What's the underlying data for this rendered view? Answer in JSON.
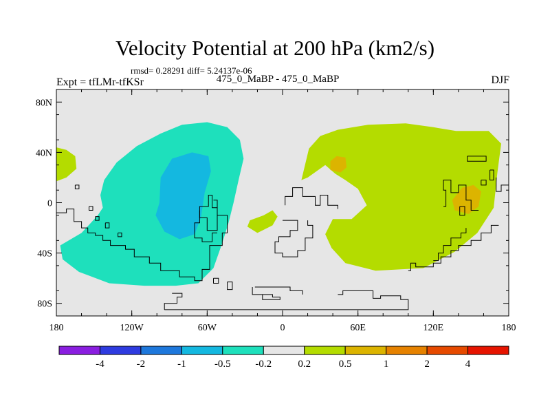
{
  "chart_data": {
    "type": "contour-map",
    "title": "Velocity Potential at 200 hPa (km2/s)",
    "stats_text": "rmsd= 0.28291 diff= 5.24137e-06",
    "left_label": "Expt = tfLMr-tfKSr",
    "center_label": "475_0_MaBP - 475_0_MaBP",
    "right_label": "DJF",
    "xlim": [
      -180,
      180
    ],
    "ylim": [
      -90,
      90
    ],
    "x_ticks": [
      {
        "value": -180,
        "label": "180"
      },
      {
        "value": -120,
        "label": "120W"
      },
      {
        "value": -60,
        "label": "60W"
      },
      {
        "value": 0,
        "label": "0"
      },
      {
        "value": 60,
        "label": "60E"
      },
      {
        "value": 120,
        "label": "120E"
      },
      {
        "value": 180,
        "label": "180"
      }
    ],
    "y_ticks": [
      {
        "value": 80,
        "label": "80N"
      },
      {
        "value": 40,
        "label": "40N"
      },
      {
        "value": 0,
        "label": "0"
      },
      {
        "value": -40,
        "label": "40S"
      },
      {
        "value": -80,
        "label": "80S"
      }
    ],
    "colorbar": {
      "labels": [
        "-4",
        "-2",
        "-1",
        "-0.5",
        "-0.2",
        "0.2",
        "0.5",
        "1",
        "2",
        "4"
      ],
      "colors": [
        "#8a1ee0",
        "#2e3be0",
        "#1e78dc",
        "#14b8e0",
        "#1ee0bc",
        "#e6e6e6",
        "#b4dc00",
        "#dcb400",
        "#e68200",
        "#e64a00",
        "#e61400"
      ]
    },
    "regions": [
      {
        "name": "western-hemisphere-negative",
        "level": "-0.5 to -0.2",
        "color": "#1ee0bc",
        "points": [
          [
            -177,
            -34
          ],
          [
            -160,
            -24
          ],
          [
            -147,
            -10
          ],
          [
            -143,
            -4
          ],
          [
            -145,
            6
          ],
          [
            -142,
            18
          ],
          [
            -132,
            32
          ],
          [
            -116,
            45
          ],
          [
            -97,
            55
          ],
          [
            -80,
            62
          ],
          [
            -60,
            64
          ],
          [
            -44,
            60
          ],
          [
            -34,
            50
          ],
          [
            -31,
            35
          ],
          [
            -35,
            18
          ],
          [
            -39,
            0
          ],
          [
            -43,
            -16
          ],
          [
            -48,
            -32
          ],
          [
            -55,
            -52
          ],
          [
            -67,
            -64
          ],
          [
            -85,
            -66
          ],
          [
            -110,
            -66
          ],
          [
            -138,
            -64
          ],
          [
            -162,
            -55
          ],
          [
            -175,
            -45
          ]
        ]
      },
      {
        "name": "western-core-negative",
        "level": "-1 to -0.5",
        "color": "#14b8e0",
        "points": [
          [
            -98,
            0
          ],
          [
            -97,
            20
          ],
          [
            -88,
            35
          ],
          [
            -72,
            40
          ],
          [
            -59,
            37
          ],
          [
            -57,
            25
          ],
          [
            -62,
            8
          ],
          [
            -65,
            -12
          ],
          [
            -70,
            -25
          ],
          [
            -82,
            -29
          ],
          [
            -94,
            -23
          ],
          [
            -101,
            -10
          ]
        ]
      },
      {
        "name": "dateline-positive-blob",
        "level": "0.2 to 0.5",
        "color": "#b4dc00",
        "points": [
          [
            -180,
            44
          ],
          [
            -172,
            42
          ],
          [
            -165,
            37
          ],
          [
            -164,
            27
          ],
          [
            -172,
            20
          ],
          [
            -180,
            17
          ]
        ]
      },
      {
        "name": "small-atlantic-positive",
        "level": "0.2 to 0.5",
        "color": "#b4dc00",
        "points": [
          [
            -15,
            -10
          ],
          [
            -8,
            -6
          ],
          [
            -4,
            -11
          ],
          [
            -8,
            -18
          ],
          [
            -20,
            -24
          ],
          [
            -28,
            -19
          ],
          [
            -26,
            -14
          ]
        ]
      },
      {
        "name": "eastern-hemisphere-positive",
        "level": "0.2 to 0.5",
        "color": "#b4dc00",
        "points": [
          [
            15,
            18
          ],
          [
            21,
            43
          ],
          [
            30,
            53
          ],
          [
            44,
            58
          ],
          [
            68,
            62
          ],
          [
            98,
            63
          ],
          [
            120,
            60
          ],
          [
            138,
            57
          ],
          [
            164,
            57
          ],
          [
            174,
            47
          ],
          [
            171,
            24
          ],
          [
            168,
            -4
          ],
          [
            155,
            -24
          ],
          [
            137,
            -39
          ],
          [
            112,
            -52
          ],
          [
            74,
            -54
          ],
          [
            50,
            -48
          ],
          [
            39,
            -36
          ],
          [
            34,
            -25
          ],
          [
            40,
            -13
          ],
          [
            55,
            -13
          ],
          [
            67,
            -2
          ],
          [
            60,
            11
          ],
          [
            50,
            18
          ],
          [
            42,
            23
          ],
          [
            34,
            30
          ],
          [
            20,
            20
          ]
        ]
      },
      {
        "name": "africa-core-positive",
        "level": "0.5 to 1",
        "color": "#dcb400",
        "points": [
          [
            38,
            33
          ],
          [
            43,
            37
          ],
          [
            50,
            36
          ],
          [
            51,
            28
          ],
          [
            46,
            24
          ],
          [
            38,
            26
          ]
        ]
      },
      {
        "name": "australia-core-positive",
        "level": "0.5 to 1",
        "color": "#dcb400",
        "points": [
          [
            135,
            2
          ],
          [
            143,
            12
          ],
          [
            152,
            14
          ],
          [
            158,
            9
          ],
          [
            156,
            -3
          ],
          [
            148,
            -9
          ],
          [
            137,
            -6
          ]
        ]
      }
    ],
    "coastlines": [
      [
        [
          -180,
          -8
        ],
        [
          -172,
          -8
        ],
        [
          -172,
          -5
        ],
        [
          -166,
          -5
        ],
        [
          -166,
          -15
        ],
        [
          -160,
          -15
        ],
        [
          -160,
          -20
        ],
        [
          -155,
          -20
        ],
        [
          -155,
          -24
        ],
        [
          -149,
          -24
        ],
        [
          -149,
          -26
        ],
        [
          -143,
          -26
        ],
        [
          -143,
          -30
        ],
        [
          -137,
          -30
        ],
        [
          -137,
          -34
        ],
        [
          -125,
          -34
        ],
        [
          -125,
          -37
        ],
        [
          -118,
          -37
        ],
        [
          -118,
          -43
        ],
        [
          -106,
          -43
        ],
        [
          -106,
          -48
        ],
        [
          -97,
          -48
        ],
        [
          -97,
          -54
        ],
        [
          -82,
          -54
        ],
        [
          -82,
          -59
        ],
        [
          -70,
          -59
        ],
        [
          -70,
          -62
        ],
        [
          -64,
          -62
        ],
        [
          -64,
          -53
        ],
        [
          -58,
          -53
        ],
        [
          -58,
          -34
        ],
        [
          -48,
          -34
        ],
        [
          -48,
          -24
        ],
        [
          -44,
          -24
        ],
        [
          -44,
          -10
        ],
        [
          -52,
          -10
        ],
        [
          -52,
          -4
        ],
        [
          -56,
          -4
        ],
        [
          -56,
          6
        ],
        [
          -59,
          6
        ],
        [
          -59,
          -3
        ],
        [
          -66,
          -3
        ],
        [
          -66,
          -16
        ],
        [
          -70,
          -16
        ],
        [
          -70,
          -28
        ],
        [
          -64,
          -28
        ],
        [
          -64,
          -31
        ],
        [
          -56,
          -31
        ],
        [
          -56,
          -24
        ],
        [
          -52,
          -24
        ]
      ],
      [
        [
          -55,
          2
        ],
        [
          -52,
          2
        ],
        [
          -52,
          -22
        ],
        [
          -60,
          -22
        ],
        [
          -60,
          -12
        ],
        [
          -66,
          -12
        ],
        [
          -66,
          -6
        ]
      ],
      [
        [
          -165,
          14
        ],
        [
          -162,
          14
        ],
        [
          -162,
          11
        ],
        [
          -165,
          11
        ],
        [
          -165,
          14
        ]
      ],
      [
        [
          -154,
          -3
        ],
        [
          -151,
          -3
        ],
        [
          -151,
          -6
        ],
        [
          -154,
          -6
        ],
        [
          -154,
          -3
        ]
      ],
      [
        [
          -149,
          -11
        ],
        [
          -146,
          -11
        ],
        [
          -146,
          -14
        ],
        [
          -149,
          -14
        ],
        [
          -149,
          -11
        ]
      ],
      [
        [
          -141,
          -16
        ],
        [
          -138,
          -16
        ],
        [
          -138,
          -20
        ],
        [
          -141,
          -20
        ],
        [
          -141,
          -16
        ]
      ],
      [
        [
          -131,
          -24
        ],
        [
          -128,
          -24
        ],
        [
          -128,
          -27
        ],
        [
          -131,
          -27
        ],
        [
          -131,
          -24
        ]
      ],
      [
        [
          -55,
          -60
        ],
        [
          -51,
          -60
        ],
        [
          -51,
          -64
        ],
        [
          -55,
          -64
        ],
        [
          -55,
          -60
        ]
      ],
      [
        [
          -44,
          -63
        ],
        [
          -40,
          -63
        ],
        [
          -40,
          -69
        ],
        [
          -44,
          -69
        ],
        [
          -44,
          -63
        ]
      ],
      [
        [
          -94,
          -85
        ],
        [
          -94,
          -80
        ],
        [
          -84,
          -80
        ],
        [
          -84,
          -75
        ],
        [
          -80,
          -75
        ],
        [
          -80,
          -72
        ],
        [
          -88,
          -72
        ]
      ],
      [
        [
          -94,
          -85
        ],
        [
          100,
          -85
        ],
        [
          100,
          -77
        ],
        [
          94,
          -77
        ],
        [
          94,
          -74
        ],
        [
          78,
          -74
        ],
        [
          78,
          -76
        ],
        [
          72,
          -76
        ],
        [
          72,
          -70
        ],
        [
          48,
          -70
        ],
        [
          48,
          -73
        ],
        [
          44,
          -73
        ]
      ],
      [
        [
          -24,
          -67
        ],
        [
          -24,
          -73
        ],
        [
          -8,
          -73
        ],
        [
          -8,
          -75
        ],
        [
          -2,
          -75
        ],
        [
          -2,
          -77
        ],
        [
          -16,
          -77
        ],
        [
          -16,
          -73
        ]
      ],
      [
        [
          -22,
          -67
        ],
        [
          6,
          -67
        ],
        [
          6,
          -70
        ],
        [
          16,
          -70
        ],
        [
          16,
          -73
        ]
      ],
      [
        [
          2,
          -2
        ],
        [
          2,
          5
        ],
        [
          8,
          5
        ],
        [
          8,
          12
        ],
        [
          16,
          12
        ],
        [
          16,
          5
        ],
        [
          26,
          5
        ],
        [
          26,
          -2
        ],
        [
          30,
          -2
        ],
        [
          30,
          6
        ],
        [
          36,
          6
        ],
        [
          36,
          -2
        ],
        [
          44,
          -2
        ],
        [
          44,
          -5
        ]
      ],
      [
        [
          0,
          -14
        ],
        [
          12,
          -14
        ],
        [
          12,
          -22
        ],
        [
          6,
          -22
        ],
        [
          6,
          -27
        ],
        [
          -3,
          -27
        ],
        [
          -3,
          -31
        ],
        [
          -6,
          -31
        ],
        [
          -6,
          -40
        ],
        [
          0,
          -40
        ],
        [
          0,
          -43
        ],
        [
          12,
          -43
        ],
        [
          12,
          -38
        ],
        [
          18,
          -38
        ],
        [
          18,
          -28
        ],
        [
          24,
          -28
        ],
        [
          24,
          -18
        ],
        [
          20,
          -18
        ],
        [
          20,
          -14
        ]
      ],
      [
        [
          100,
          -54
        ],
        [
          102,
          -54
        ],
        [
          102,
          -48
        ],
        [
          106,
          -48
        ],
        [
          106,
          -51
        ],
        [
          120,
          -51
        ],
        [
          120,
          -48
        ],
        [
          126,
          -48
        ],
        [
          126,
          -43
        ],
        [
          134,
          -43
        ],
        [
          134,
          -38
        ],
        [
          140,
          -38
        ],
        [
          140,
          -34
        ],
        [
          150,
          -34
        ],
        [
          150,
          -30
        ],
        [
          158,
          -30
        ],
        [
          158,
          -24
        ],
        [
          166,
          -24
        ],
        [
          166,
          -18
        ],
        [
          172,
          -18
        ]
      ],
      [
        [
          120,
          -46
        ],
        [
          124,
          -46
        ],
        [
          124,
          -40
        ],
        [
          128,
          -40
        ],
        [
          128,
          -34
        ],
        [
          134,
          -34
        ],
        [
          134,
          -28
        ],
        [
          142,
          -28
        ],
        [
          142,
          -24
        ],
        [
          146,
          -24
        ],
        [
          146,
          -20
        ]
      ],
      [
        [
          128,
          -3
        ],
        [
          130,
          -3
        ],
        [
          130,
          10
        ],
        [
          128,
          10
        ],
        [
          128,
          18
        ],
        [
          134,
          18
        ],
        [
          134,
          8
        ],
        [
          140,
          8
        ],
        [
          140,
          14
        ],
        [
          146,
          14
        ],
        [
          146,
          2
        ],
        [
          150,
          2
        ],
        [
          150,
          -6
        ],
        [
          156,
          -6
        ]
      ],
      [
        [
          141,
          -3
        ],
        [
          145,
          -3
        ],
        [
          145,
          -10
        ],
        [
          141,
          -10
        ],
        [
          141,
          -3
        ]
      ],
      [
        [
          147,
          37
        ],
        [
          162,
          37
        ],
        [
          162,
          33
        ],
        [
          147,
          33
        ],
        [
          147,
          37
        ]
      ],
      [
        [
          165,
          26
        ],
        [
          168,
          26
        ],
        [
          168,
          18
        ],
        [
          165,
          18
        ],
        [
          165,
          26
        ]
      ],
      [
        [
          170,
          20
        ],
        [
          170,
          9
        ],
        [
          174,
          9
        ],
        [
          174,
          14
        ],
        [
          180,
          14
        ]
      ],
      [
        [
          158,
          18
        ],
        [
          162,
          18
        ],
        [
          162,
          14
        ],
        [
          158,
          14
        ],
        [
          158,
          18
        ]
      ]
    ]
  }
}
